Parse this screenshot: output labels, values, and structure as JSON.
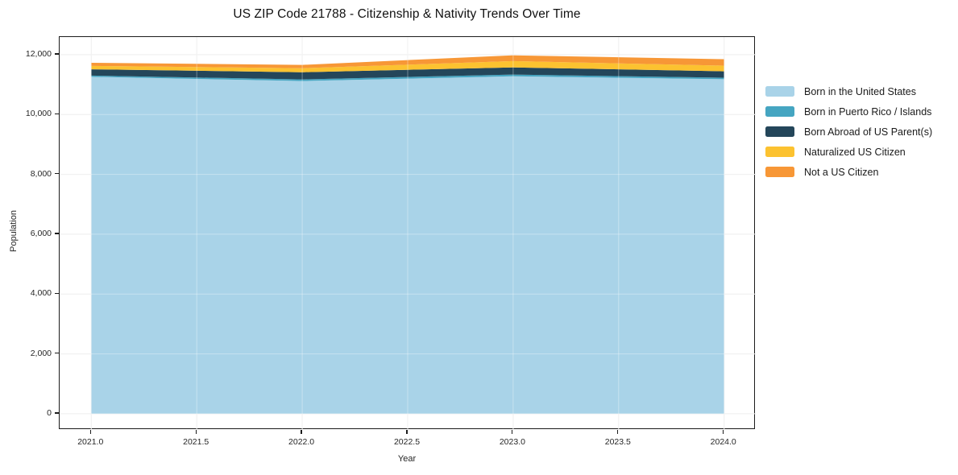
{
  "title": "US ZIP Code 21788 - Citizenship & Nativity Trends Over Time",
  "chart_data": {
    "type": "area",
    "stacked": true,
    "title": "US ZIP Code 21788 - Citizenship & Nativity Trends Over Time",
    "xlabel": "Year",
    "ylabel": "Population",
    "x": [
      2021,
      2022,
      2023,
      2024
    ],
    "series": [
      {
        "name": "Born in the United States",
        "color": "#a9d3e8",
        "values": [
          11260,
          11120,
          11280,
          11180
        ]
      },
      {
        "name": "Born in Puerto Rico / Islands",
        "color": "#45a5c1",
        "values": [
          40,
          55,
          55,
          50
        ]
      },
      {
        "name": "Born Abroad of US Parent(s)",
        "color": "#24465a",
        "values": [
          210,
          240,
          240,
          215
        ]
      },
      {
        "name": "Naturalized US Citizen",
        "color": "#fcc230",
        "values": [
          115,
          135,
          210,
          190
        ]
      },
      {
        "name": "Not a US Citizen",
        "color": "#f79736",
        "values": [
          105,
          110,
          195,
          215
        ]
      }
    ],
    "totals": [
      11730,
      11660,
      11980,
      11850
    ],
    "xlim": [
      2020.85,
      2024.15
    ],
    "ylim": [
      -540,
      12590
    ],
    "x_ticks": [
      2021.0,
      2021.5,
      2022.0,
      2022.5,
      2023.0,
      2023.5,
      2024.0
    ],
    "x_tick_labels": [
      "2021.0",
      "2021.5",
      "2022.0",
      "2022.5",
      "2023.0",
      "2023.5",
      "2024.0"
    ],
    "y_ticks": [
      0,
      2000,
      4000,
      6000,
      8000,
      10000,
      12000
    ],
    "y_tick_labels": [
      "0",
      "2,000",
      "4,000",
      "6,000",
      "8,000",
      "10,000",
      "12,000"
    ],
    "grid": true,
    "legend_position": "right",
    "colors": {
      "grid": "#e8e8e8",
      "spine": "#1c1c1c",
      "background": "#ffffff",
      "tick_text": "#262626"
    }
  }
}
